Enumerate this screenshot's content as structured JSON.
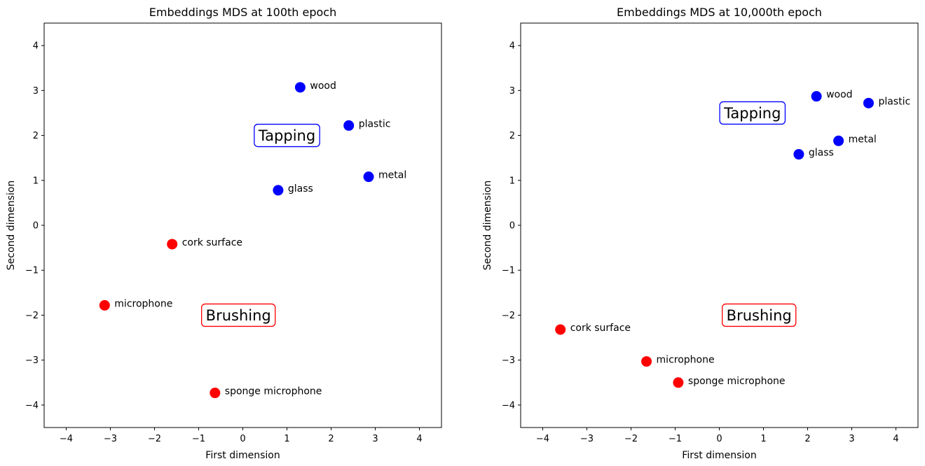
{
  "chart_data": [
    {
      "type": "scatter",
      "title": "Embeddings MDS at 100th epoch",
      "xlabel": "First dimension",
      "ylabel": "Second dimension",
      "xlim": [
        -4.5,
        4.5
      ],
      "ylim": [
        -4.5,
        4.5
      ],
      "xticks": [
        -4,
        -3,
        -2,
        -1,
        0,
        1,
        2,
        3,
        4
      ],
      "yticks": [
        -4,
        -3,
        -2,
        -1,
        0,
        1,
        2,
        3,
        4
      ],
      "xtick_labels": [
        "−4",
        "−3",
        "−2",
        "−1",
        "0",
        "1",
        "2",
        "3",
        "4"
      ],
      "ytick_labels": [
        "−4",
        "−3",
        "−2",
        "−1",
        "0",
        "1",
        "2",
        "3",
        "4"
      ],
      "grid": false,
      "points": [
        {
          "label": "wood",
          "x": 1.3,
          "y": 3.07,
          "color": "#0000ff"
        },
        {
          "label": "plastic",
          "x": 2.4,
          "y": 2.22,
          "color": "#0000ff"
        },
        {
          "label": "metal",
          "x": 2.85,
          "y": 1.08,
          "color": "#0000ff"
        },
        {
          "label": "glass",
          "x": 0.8,
          "y": 0.78,
          "color": "#0000ff"
        },
        {
          "label": "cork surface",
          "x": -1.6,
          "y": -0.42,
          "color": "#ff0000"
        },
        {
          "label": "microphone",
          "x": -3.13,
          "y": -1.78,
          "color": "#ff0000"
        },
        {
          "label": "sponge microphone",
          "x": -0.63,
          "y": -3.73,
          "color": "#ff0000"
        }
      ],
      "annotations": [
        {
          "text": "Tapping",
          "x": 1.0,
          "y": 2.0,
          "color": "#0000ff"
        },
        {
          "text": "Brushing",
          "x": -0.1,
          "y": -2.0,
          "color": "#ff0000"
        }
      ]
    },
    {
      "type": "scatter",
      "title": "Embeddings MDS at 10,000th epoch",
      "xlabel": "First dimension",
      "ylabel": "Second dimension",
      "xlim": [
        -4.5,
        4.5
      ],
      "ylim": [
        -4.5,
        4.5
      ],
      "xticks": [
        -4,
        -3,
        -2,
        -1,
        0,
        1,
        2,
        3,
        4
      ],
      "yticks": [
        -4,
        -3,
        -2,
        -1,
        0,
        1,
        2,
        3,
        4
      ],
      "xtick_labels": [
        "−4",
        "−3",
        "−2",
        "−1",
        "0",
        "1",
        "2",
        "3",
        "4"
      ],
      "ytick_labels": [
        "−4",
        "−3",
        "−2",
        "−1",
        "0",
        "1",
        "2",
        "3",
        "4"
      ],
      "grid": false,
      "points": [
        {
          "label": "wood",
          "x": 2.2,
          "y": 2.87,
          "color": "#0000ff"
        },
        {
          "label": "plastic",
          "x": 3.38,
          "y": 2.72,
          "color": "#0000ff"
        },
        {
          "label": "metal",
          "x": 2.7,
          "y": 1.88,
          "color": "#0000ff"
        },
        {
          "label": "glass",
          "x": 1.8,
          "y": 1.58,
          "color": "#0000ff"
        },
        {
          "label": "cork surface",
          "x": -3.6,
          "y": -2.32,
          "color": "#ff0000"
        },
        {
          "label": "microphone",
          "x": -1.65,
          "y": -3.03,
          "color": "#ff0000"
        },
        {
          "label": "sponge microphone",
          "x": -0.93,
          "y": -3.5,
          "color": "#ff0000"
        }
      ],
      "annotations": [
        {
          "text": "Tapping",
          "x": 0.75,
          "y": 2.5,
          "color": "#0000ff"
        },
        {
          "text": "Brushing",
          "x": 0.9,
          "y": -2.0,
          "color": "#ff0000"
        }
      ]
    }
  ]
}
